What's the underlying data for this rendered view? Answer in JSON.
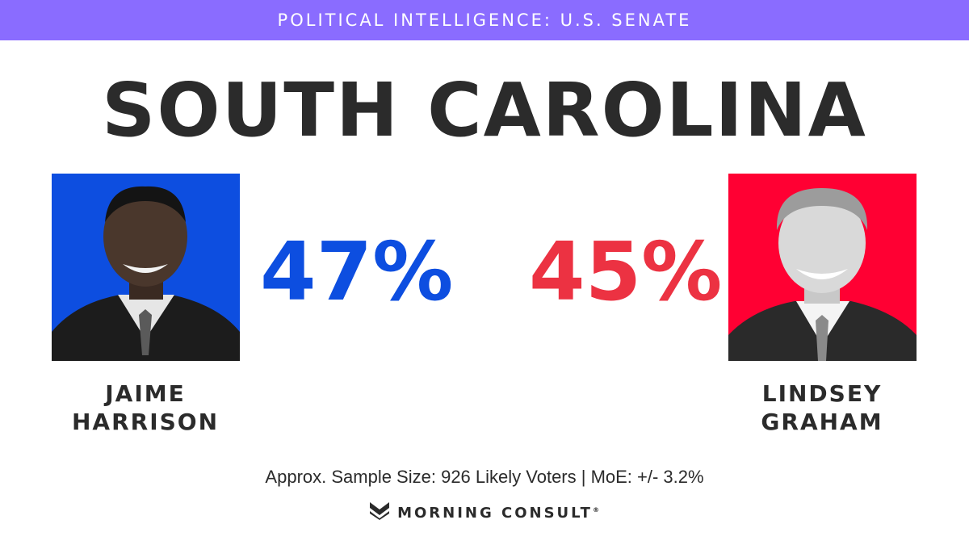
{
  "header": {
    "banner": "POLITICAL INTELLIGENCE: U.S. SENATE"
  },
  "title": "SOUTH CAROLINA",
  "candidates": [
    {
      "first": "JAIME",
      "last": "HARRISON",
      "pct": "47%",
      "color": "#0d4ee0",
      "photo_bg": "#0d4ee0"
    },
    {
      "first": "LINDSEY",
      "last": "GRAHAM",
      "pct": "45%",
      "color": "#ec3242",
      "photo_bg": "#ff0033"
    }
  ],
  "footer": {
    "sample": "Approx. Sample Size: 926 Likely Voters | MoE: +/- 3.2%",
    "brand": "MORNING CONSULT",
    "registered": "®"
  }
}
